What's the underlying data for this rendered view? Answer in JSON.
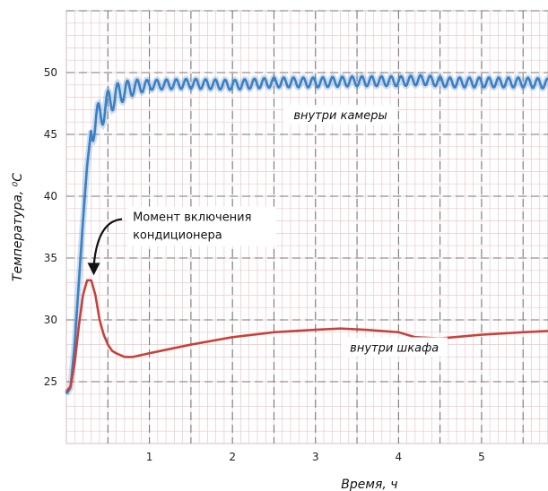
{
  "chart_data": {
    "type": "line",
    "xlabel": "Время, ч",
    "ylabel": "Температура, ⁰С",
    "xlim": [
      0,
      5.8
    ],
    "ylim": [
      20,
      55
    ],
    "x_ticks": [
      1,
      2,
      3,
      4,
      5
    ],
    "y_ticks": [
      25,
      30,
      35,
      40,
      45,
      50
    ],
    "grid": true,
    "series": [
      {
        "name": "внутри камеры",
        "color": "#3b7fc4",
        "label_at": [
          3.3,
          46.3
        ],
        "oscillation_amplitude": 0.4,
        "x": [
          0,
          0.05,
          0.1,
          0.15,
          0.2,
          0.25,
          0.3,
          0.35,
          0.4,
          0.5,
          0.6,
          0.7,
          0.8,
          1.0,
          1.5,
          2.0,
          2.5,
          3.0,
          3.5,
          4.0,
          4.3,
          4.6,
          5.0,
          5.5,
          5.8
        ],
        "values": [
          24.0,
          24.5,
          28.0,
          33.0,
          38.0,
          42.5,
          45.5,
          46.0,
          46.5,
          47.5,
          48.2,
          48.5,
          48.8,
          49.0,
          49.1,
          49.0,
          49.2,
          49.2,
          49.3,
          49.3,
          49.4,
          49.2,
          49.2,
          49.2,
          49.1
        ]
      },
      {
        "name": "внутри шкафа",
        "color": "#c9403b",
        "label_at": [
          3.95,
          27.5
        ],
        "x": [
          0,
          0.05,
          0.1,
          0.15,
          0.2,
          0.25,
          0.3,
          0.35,
          0.4,
          0.45,
          0.5,
          0.55,
          0.6,
          0.7,
          0.8,
          1.0,
          1.5,
          2.0,
          2.5,
          3.0,
          3.3,
          3.6,
          4.0,
          4.2,
          4.5,
          5.0,
          5.5,
          5.8
        ],
        "values": [
          24.2,
          24.6,
          26.5,
          29.5,
          32.0,
          33.2,
          33.2,
          32.0,
          30.0,
          28.8,
          28.0,
          27.5,
          27.3,
          27.0,
          27.0,
          27.3,
          28.0,
          28.6,
          29.0,
          29.2,
          29.3,
          29.2,
          29.0,
          28.6,
          28.5,
          28.8,
          29.0,
          29.1
        ]
      }
    ],
    "annotation": {
      "lines": [
        "Момент включения",
        "кондиционера"
      ],
      "text_at": [
        0.8,
        38.0
      ],
      "arrow_to": [
        0.33,
        33.6
      ]
    }
  }
}
